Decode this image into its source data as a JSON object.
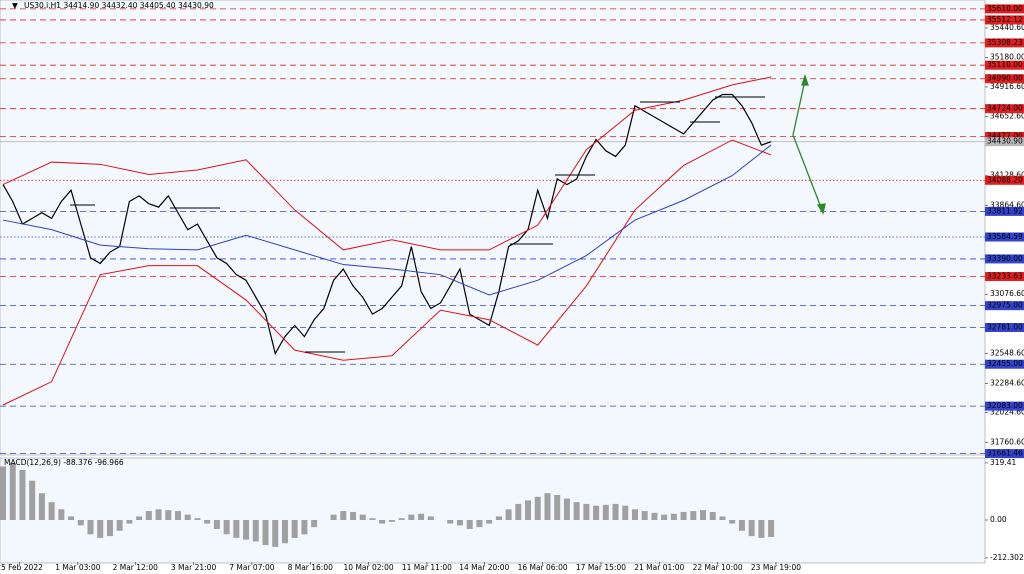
{
  "chart_data": [
    {
      "type": "line",
      "title": "US30.i,H1 34414.90 34432.40 34405.40 34430.90",
      "x": [
        0,
        1,
        2,
        3,
        4,
        5,
        6,
        7,
        8,
        9,
        10,
        11,
        12,
        13,
        14,
        15,
        16,
        17,
        18,
        19,
        20,
        21,
        22,
        23,
        24,
        25,
        26,
        27,
        28,
        29,
        30,
        31,
        32,
        33,
        34,
        35,
        36,
        37,
        38,
        39,
        40,
        41,
        42,
        43,
        44,
        45,
        46,
        47,
        48,
        49,
        50,
        51,
        52,
        53,
        54,
        55,
        56,
        57,
        58,
        59,
        60,
        61,
        62,
        63,
        64,
        65,
        66,
        67,
        68,
        69,
        70,
        71,
        72,
        73,
        74,
        75,
        76,
        77,
        78,
        79
      ],
      "xlim": [
        0,
        101
      ],
      "ylim": [
        31649,
        35689
      ],
      "yticks": [
        {
          "value": 35440.6,
          "label": "35440.60"
        },
        {
          "value": 35180,
          "label": "35180.00"
        },
        {
          "value": 34916.6,
          "label": "34916.60"
        },
        {
          "value": 34652.6,
          "label": "34652.60"
        },
        {
          "value": 34128.6,
          "label": "34128.60"
        },
        {
          "value": 33864.6,
          "label": "33864.60"
        },
        {
          "value": 33076.6,
          "label": "33076.60"
        },
        {
          "value": 32548.6,
          "label": "32548.60"
        },
        {
          "value": 32284.6,
          "label": "32284.60"
        },
        {
          "value": 32024.6,
          "label": "32024.60"
        },
        {
          "value": 31760.6,
          "label": "31760.60"
        }
      ],
      "levels": [
        {
          "value": 35610,
          "label": "35610.00",
          "color": "#e02020",
          "text_color": "#ffffff",
          "style": "dashed"
        },
        {
          "value": 35512.12,
          "label": "35512.12",
          "color": "#e02020",
          "text_color": "#ffffff",
          "style": "dashed"
        },
        {
          "value": 35308.23,
          "label": "35308.23",
          "color": "#e02020",
          "text_color": "#ffffff",
          "style": "dashed"
        },
        {
          "value": 35110,
          "label": "35110.00",
          "color": "#e02020",
          "text_color": "#ffffff",
          "style": "dashed"
        },
        {
          "value": 34990,
          "label": "34990.00",
          "color": "#e02020",
          "text_color": "#ffffff",
          "style": "dashed"
        },
        {
          "value": 34724,
          "label": "34724.00",
          "color": "#e02020",
          "text_color": "#ffffff",
          "style": "dashed"
        },
        {
          "value": 34477,
          "label": "34477.00",
          "color": "#e02020",
          "text_color": "#ffffff",
          "style": "dashed"
        },
        {
          "value": 34430.9,
          "label": "34430.90",
          "color": "#b8b8b8",
          "text_color": "#000000",
          "style": "solid"
        },
        {
          "value": 34088.2,
          "label": "34088.20",
          "color": "#e02020",
          "text_color": "#ffffff",
          "style": "dotted"
        },
        {
          "value": 33811.92,
          "label": "33811.92",
          "color": "#3344cc",
          "text_color": "#ffffff",
          "style": "dashed"
        },
        {
          "value": 33584.59,
          "label": "33584.59",
          "color": "#3344cc",
          "text_color": "#ffffff",
          "style": "dotted"
        },
        {
          "value": 33390,
          "label": "33390.00",
          "color": "#3344cc",
          "text_color": "#ffffff",
          "style": "dashed"
        },
        {
          "value": 33233.63,
          "label": "33233.63",
          "color": "#e02020",
          "text_color": "#ffffff",
          "style": "dashed"
        },
        {
          "value": 32975,
          "label": "32975.00",
          "color": "#3344cc",
          "text_color": "#ffffff",
          "style": "dashed"
        },
        {
          "value": 32781,
          "label": "32781.00",
          "color": "#3344cc",
          "text_color": "#ffffff",
          "style": "dashed"
        },
        {
          "value": 32455,
          "label": "32455.00",
          "color": "#3344cc",
          "text_color": "#ffffff",
          "style": "dashed"
        },
        {
          "value": 32083,
          "label": "32083.00",
          "color": "#3344cc",
          "text_color": "#ffffff",
          "style": "dashed"
        },
        {
          "value": 31661.46,
          "label": "31661.46",
          "color": "#3344cc",
          "text_color": "#ffffff",
          "style": "dashed"
        }
      ],
      "series": [
        {
          "color": "#000000",
          "values": [
            34050,
            33900,
            33700,
            33750,
            33800,
            33750,
            33900,
            34000,
            33700,
            33400,
            33350,
            33450,
            33500,
            33900,
            33950,
            33880,
            33850,
            33950,
            33800,
            33650,
            33700,
            33550,
            33400,
            33350,
            33250,
            33200,
            33050,
            32900,
            32550,
            32700,
            32800,
            32700,
            32850,
            32950,
            33200,
            33300,
            33150,
            33050,
            32900,
            32950,
            33050,
            33150,
            33500,
            33100,
            32950,
            33000,
            33150,
            33300,
            32900,
            32850,
            32800,
            33100,
            33500,
            33550,
            33650,
            34000,
            33750,
            34100,
            34050,
            34100,
            34300,
            34450,
            34350,
            34300,
            34400,
            34750,
            34700,
            34650,
            34600,
            34550,
            34500,
            34600,
            34700,
            34800,
            34850,
            34850,
            34750,
            34600,
            34400,
            34430.9
          ]
        },
        {
          "color": "#e01010",
          "x": [
            0,
            5,
            10,
            15,
            20,
            25,
            30,
            35,
            40,
            45,
            50,
            55,
            60,
            65,
            70,
            75,
            79
          ],
          "values": [
            34050,
            34250,
            34230,
            34140,
            34180,
            34270,
            33825,
            33470,
            33560,
            33470,
            33470,
            33690,
            34360,
            34710,
            34800,
            34935,
            35005
          ]
        },
        {
          "color": "#e01010",
          "x": [
            0,
            5,
            10,
            15,
            20,
            25,
            30,
            35,
            40,
            45,
            50,
            55,
            60,
            65,
            70,
            75,
            79
          ],
          "values": [
            32093,
            32300,
            33250,
            33330,
            33330,
            33025,
            32580,
            32490,
            32530,
            32935,
            32850,
            32625,
            33150,
            33825,
            34220,
            34446,
            34313
          ]
        },
        {
          "color": "#3040c0",
          "x": [
            0,
            5,
            10,
            15,
            20,
            25,
            30,
            35,
            40,
            45,
            50,
            55,
            60,
            65,
            70,
            75,
            79
          ],
          "values": [
            33735,
            33650,
            33513,
            33480,
            33470,
            33600,
            33470,
            33340,
            33300,
            33250,
            33070,
            33200,
            33420,
            33735,
            33910,
            34130,
            34402
          ]
        }
      ]
    },
    {
      "type": "bar",
      "title": "MACD(12,26,9) -88.376 -96.966",
      "x": [
        0,
        1,
        2,
        3,
        4,
        5,
        6,
        7,
        8,
        9,
        10,
        11,
        12,
        13,
        14,
        15,
        16,
        17,
        18,
        19,
        20,
        21,
        22,
        23,
        24,
        25,
        26,
        27,
        28,
        29,
        30,
        31,
        32,
        33,
        34,
        35,
        36,
        37,
        38,
        39,
        40,
        41,
        42,
        43,
        44,
        45,
        46,
        47,
        48,
        49,
        50,
        51,
        52,
        53,
        54,
        55,
        56,
        57,
        58,
        59,
        60,
        61,
        62,
        63,
        64,
        65,
        66,
        67,
        68,
        69,
        70,
        71,
        72,
        73,
        74,
        75,
        76,
        77,
        78,
        79
      ],
      "xlim": [
        0,
        101
      ],
      "xticks": [
        {
          "value": 1.7,
          "label": "25 Feb 2022"
        },
        {
          "value": 7.7,
          "label": "1 Mar 03:00"
        },
        {
          "value": 13.6,
          "label": "2 Mar 12:00"
        },
        {
          "value": 19.6,
          "label": "3 Mar 21:00"
        },
        {
          "value": 25.6,
          "label": "7 Mar 07:00"
        },
        {
          "value": 31.6,
          "label": "8 Mar 16:00"
        },
        {
          "value": 37.6,
          "label": "10 Mar 02:00"
        },
        {
          "value": 43.6,
          "label": "11 Mar 11:00"
        },
        {
          "value": 49.5,
          "label": "14 Mar 20:00"
        },
        {
          "value": 55.5,
          "label": "16 Mar 06:00"
        },
        {
          "value": 61.5,
          "label": "17 Mar 15:00"
        },
        {
          "value": 67.5,
          "label": "21 Mar 01:00"
        },
        {
          "value": 73.5,
          "label": "22 Mar 10:00"
        },
        {
          "value": 79.5,
          "label": "23 Mar 19:00"
        }
      ],
      "ylim": [
        -235,
        347
      ],
      "yticks": [
        319.41,
        {
          "value": 0,
          "label": "0.00"
        },
        -212.302
      ],
      "color": "#a0a0a0",
      "values": [
        300,
        320,
        280,
        220,
        150,
        100,
        60,
        20,
        -30,
        -80,
        -100,
        -90,
        -60,
        -20,
        20,
        50,
        60,
        55,
        50,
        30,
        10,
        -20,
        -50,
        -80,
        -100,
        -110,
        -120,
        -140,
        -150,
        -130,
        -100,
        -80,
        -40,
        0,
        30,
        50,
        45,
        30,
        10,
        -20,
        -10,
        10,
        30,
        35,
        20,
        0,
        -20,
        -30,
        -50,
        -40,
        -20,
        20,
        60,
        90,
        110,
        130,
        150,
        140,
        120,
        100,
        90,
        80,
        85,
        90,
        80,
        60,
        50,
        40,
        30,
        35,
        45,
        50,
        55,
        45,
        20,
        -20,
        -60,
        -90,
        -100,
        -95
      ]
    }
  ]
}
